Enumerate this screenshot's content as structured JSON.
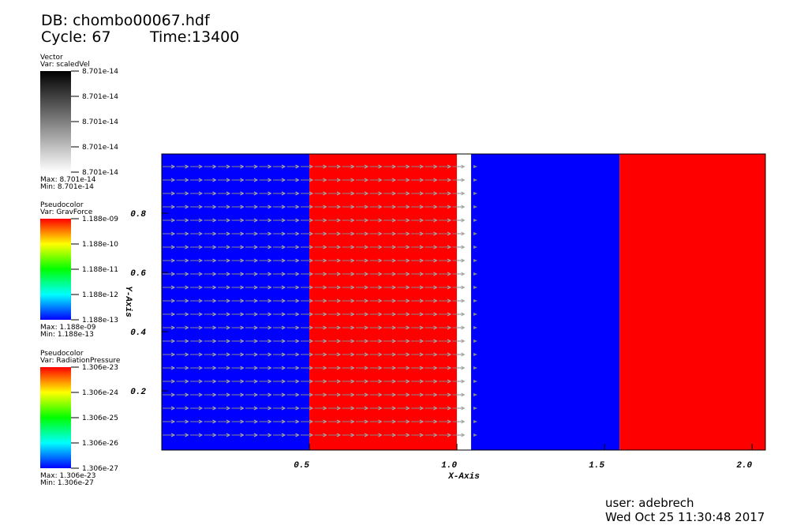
{
  "header": {
    "db": "DB: chombo00067.hdf",
    "cycle": "Cycle: 67",
    "time": "Time:13400"
  },
  "legends": [
    {
      "kind": "Vector",
      "var": "Var: scaledVel",
      "labels": [
        "8.701e-14",
        "8.701e-14",
        "8.701e-14",
        "8.701e-14",
        "8.701e-14"
      ],
      "max": "Max:  8.701e-14",
      "min": "Min:  8.701e-14"
    },
    {
      "kind": "Pseudocolor",
      "var": "Var: GravForce",
      "labels": [
        "1.188e-09",
        "1.188e-10",
        "1.188e-11",
        "1.188e-12",
        "1.188e-13"
      ],
      "max": "Max:  1.188e-09",
      "min": "Min:  1.188e-13"
    },
    {
      "kind": "Pseudocolor",
      "var": "Var: RadiationPressure",
      "labels": [
        "1.306e-23",
        "1.306e-24",
        "1.306e-25",
        "1.306e-26",
        "1.306e-27"
      ],
      "max": "Max:  1.306e-23",
      "min": "Min:  1.306e-27"
    }
  ],
  "chart_data": {
    "type": "pseudocolor",
    "x_label": "X-Axis",
    "y_label": "Y-Axis",
    "xlim": [
      0,
      2.045
    ],
    "ylim": [
      0,
      1
    ],
    "xticks": [
      0.5,
      {
        "value": 1,
        "label": "1.0"
      },
      1.5,
      {
        "value": 2,
        "label": "2.0"
      }
    ],
    "yticks": [
      0.2,
      0.4,
      0.6,
      0.8
    ],
    "regions": [
      {
        "x0": 0,
        "x1": 0.5,
        "color": "#0000ff"
      },
      {
        "x0": 0.5,
        "x1": 1.0,
        "color": "#ff0000"
      },
      {
        "x0": 1.0,
        "x1": 1.048,
        "color": "#ffffff"
      },
      {
        "x0": 1.048,
        "x1": 1.551,
        "color": "#0000ff"
      },
      {
        "x0": 1.551,
        "x1": 2.045,
        "color": "#ff0000"
      }
    ]
  },
  "footer": {
    "user": "user: adebrech",
    "date": "Wed Oct 25 11:30:48 2017"
  }
}
